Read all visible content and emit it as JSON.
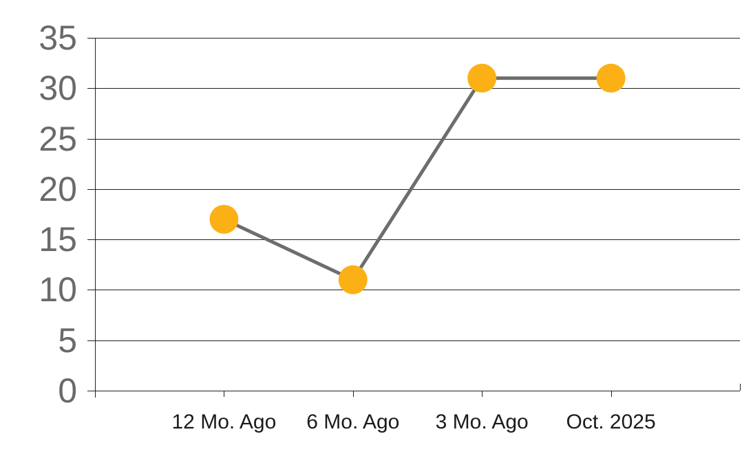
{
  "chart_data": {
    "type": "line",
    "categories": [
      "12 Mo. Ago",
      "6 Mo. Ago",
      "3 Mo. Ago",
      "Oct. 2025"
    ],
    "series": [
      {
        "name": "value",
        "values": [
          17,
          11,
          31,
          31
        ]
      }
    ],
    "title": "",
    "xlabel": "",
    "ylabel": "",
    "ylim": [
      0,
      35
    ],
    "ytick_step": 5,
    "yticks": [
      "0",
      "5",
      "10",
      "15",
      "20",
      "25",
      "30",
      "35"
    ],
    "grid": true,
    "legend_position": "none",
    "colors": {
      "marker": "#FBB116",
      "line": "#6D6D6D",
      "gridline": "#1F1F1F",
      "axis": "#1F1F1F",
      "y_tick_label": "#6A6A6A",
      "x_tick_label": "#1B1B1B",
      "background": "#FFFFFF"
    }
  }
}
